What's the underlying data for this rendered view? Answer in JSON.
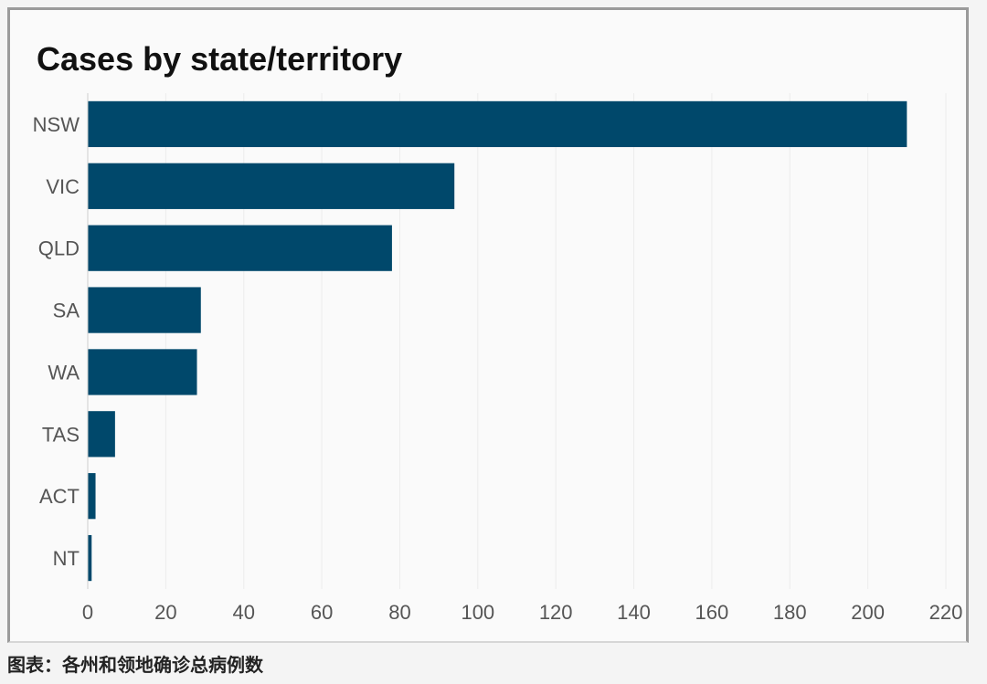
{
  "chart_data": {
    "type": "bar",
    "orientation": "horizontal",
    "title": "Cases by state/territory",
    "categories": [
      "NSW",
      "VIC",
      "QLD",
      "SA",
      "WA",
      "TAS",
      "ACT",
      "NT"
    ],
    "values": [
      210,
      94,
      78,
      29,
      28,
      7,
      2,
      1
    ],
    "xlim": [
      0,
      220
    ],
    "xticks": [
      0,
      20,
      40,
      60,
      80,
      100,
      120,
      140,
      160,
      180,
      200,
      220
    ],
    "xlabel": "",
    "ylabel": "",
    "grid": "vertical",
    "legend": "none",
    "bar_color": "#00486b"
  },
  "caption": "图表：各州和领地确诊总病例数"
}
